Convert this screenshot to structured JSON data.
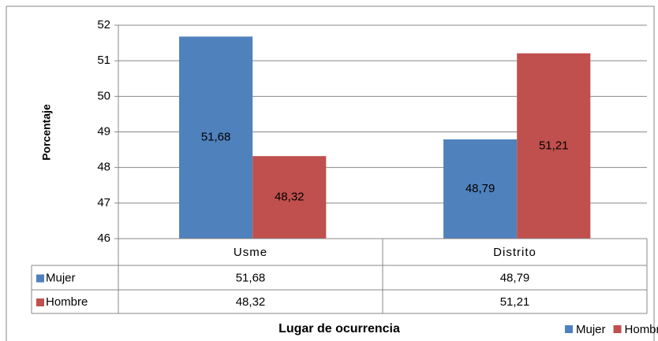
{
  "chart_data": {
    "type": "bar",
    "y_label": "Porcentaje",
    "x_label": "Lugar de ocurrencia",
    "categories": [
      "Usme",
      "Distrito"
    ],
    "series": [
      {
        "name": "Mujer",
        "color": "#4f81bd",
        "values": [
          51.68,
          48.79
        ],
        "value_labels": [
          "51,68",
          "48,79"
        ]
      },
      {
        "name": "Hombre",
        "color": "#c0504d",
        "values": [
          48.32,
          51.21
        ],
        "value_labels": [
          "48,32",
          "51,21"
        ]
      }
    ],
    "ylim": [
      46,
      52
    ],
    "yticks": [
      46,
      47,
      48,
      49,
      50,
      51,
      52
    ],
    "grid": true,
    "legend": "bottom-right"
  }
}
